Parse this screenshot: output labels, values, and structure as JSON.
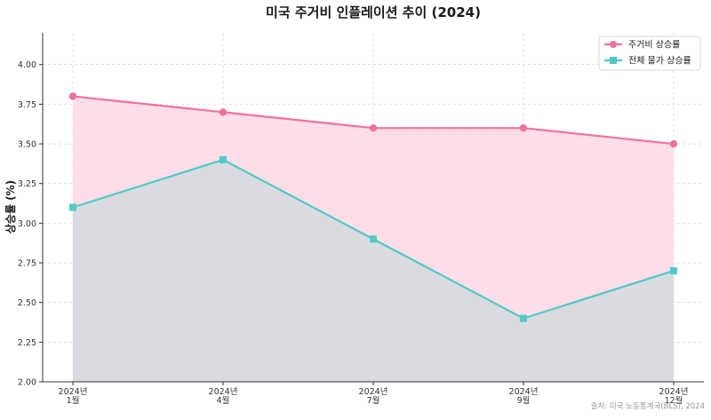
{
  "chart_data": {
    "type": "area",
    "title": "미국 주거비 인플레이션 추이 (2024)",
    "xlabel": "",
    "ylabel": "상승률 (%)",
    "categories": [
      "2024년\n1월",
      "2024년\n4월",
      "2024년\n7월",
      "2024년\n9월",
      "2024년\n12월"
    ],
    "ylim": [
      2.0,
      4.2
    ],
    "yticks": [
      "2.00",
      "2.25",
      "2.50",
      "2.75",
      "3.00",
      "3.25",
      "3.50",
      "3.75",
      "4.00"
    ],
    "grid": true,
    "legend_position": "top-right",
    "series": [
      {
        "name": "주거비 상승률",
        "values": [
          3.8,
          3.7,
          3.6,
          3.6,
          3.5
        ],
        "color": "#f07199",
        "fill": "#fddbe6",
        "marker": "circle"
      },
      {
        "name": "전체 물가 상승률",
        "values": [
          3.1,
          3.4,
          2.9,
          2.4,
          2.7
        ],
        "color": "#4ecbc4",
        "fill": "#d9dbe0",
        "marker": "square"
      }
    ],
    "annotation": "출처: 미국 노동통계국(BLS), 2024"
  }
}
